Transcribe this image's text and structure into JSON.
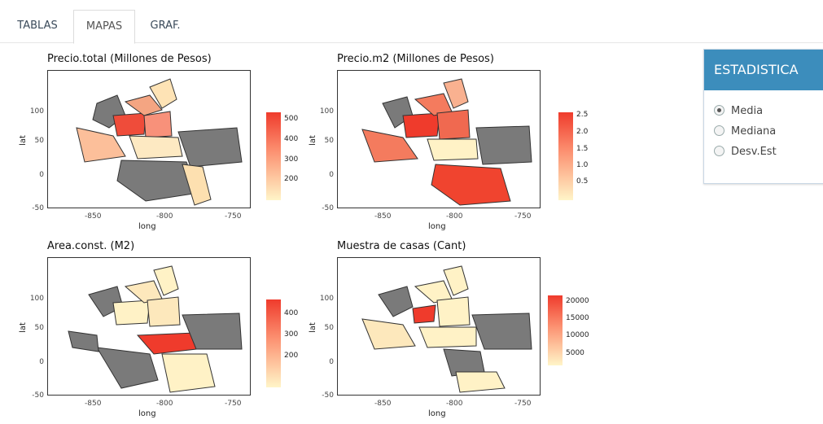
{
  "tabs": [
    {
      "label": "TABLAS",
      "active": false
    },
    {
      "label": "MAPAS",
      "active": true
    },
    {
      "label": "GRAF.",
      "active": false
    }
  ],
  "maps": [
    {
      "title": "Precio.total (Millones de Pesos)",
      "legend_ticks": [
        "500",
        "400",
        "300",
        "200"
      ],
      "xlabel": "long",
      "ylabel": "lat"
    },
    {
      "title": "Precio.m2 (Millones de Pesos)",
      "legend_ticks": [
        "2.5",
        "2.0",
        "1.5",
        "1.0",
        "0.5"
      ],
      "xlabel": "long",
      "ylabel": "lat"
    },
    {
      "title": "Area.const. (M2)",
      "legend_ticks": [
        "400",
        "300",
        "200"
      ],
      "xlabel": "long",
      "ylabel": "lat"
    },
    {
      "title": "Muestra de casas (Cant)",
      "legend_ticks": [
        "20000",
        "15000",
        "10000",
        "5000"
      ],
      "xlabel": "long",
      "ylabel": "lat"
    }
  ],
  "axes": {
    "yticks": [
      "100",
      "50",
      "0",
      "-50"
    ],
    "xticks": [
      "-850",
      "-800",
      "-750"
    ]
  },
  "sidebar": {
    "title": "ESTADISTICA",
    "options": [
      {
        "label": "Media",
        "checked": true
      },
      {
        "label": "Mediana",
        "checked": false
      },
      {
        "label": "Desv.Est",
        "checked": false
      }
    ]
  },
  "colors": {
    "accent": "#3c8dbc",
    "missing": "#7a7a7a",
    "high": "#ef3b2c",
    "low": "#fff5c8"
  }
}
